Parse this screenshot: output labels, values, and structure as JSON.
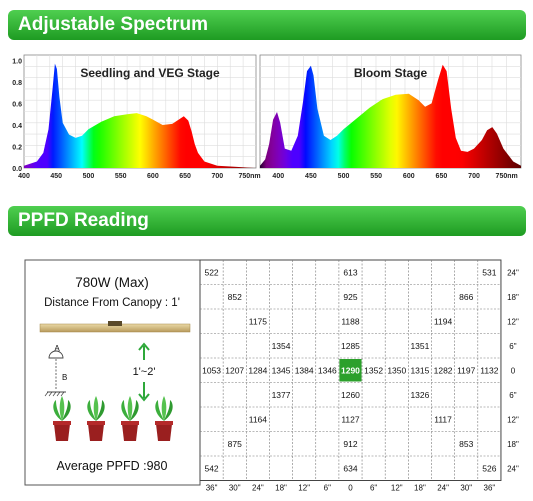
{
  "sections": {
    "spectrum_title": "Adjustable Spectrum",
    "ppfd_title": "PPFD Reading"
  },
  "colors": {
    "banner": "#2ea83a",
    "highlight": "#2ca02c",
    "fixture": "#c9b37a"
  },
  "chart_data": [
    {
      "type": "area",
      "title": "Seedling and VEG Stage",
      "x_ticks": [
        "400",
        "450",
        "500",
        "550",
        "600",
        "650",
        "700",
        "750nm"
      ],
      "y_ticks": [
        "0.0",
        "0.2",
        "0.4",
        "0.6",
        "0.8",
        "1.0"
      ],
      "xlim": [
        400,
        760
      ],
      "ylim": [
        0,
        1.05
      ],
      "x": [
        400,
        420,
        430,
        438,
        444,
        448,
        451,
        455,
        460,
        470,
        480,
        490,
        500,
        520,
        540,
        560,
        575,
        590,
        600,
        615,
        630,
        640,
        648,
        655,
        660,
        665,
        670,
        680,
        700,
        730,
        760
      ],
      "values": [
        0.02,
        0.06,
        0.14,
        0.36,
        0.72,
        0.97,
        0.92,
        0.66,
        0.42,
        0.31,
        0.28,
        0.3,
        0.36,
        0.43,
        0.48,
        0.5,
        0.51,
        0.48,
        0.45,
        0.4,
        0.41,
        0.45,
        0.48,
        0.44,
        0.34,
        0.22,
        0.14,
        0.06,
        0.02,
        0.01,
        0.0
      ]
    },
    {
      "type": "area",
      "title": "Bloom Stage",
      "x_ticks": [
        "400",
        "450",
        "500",
        "550",
        "600",
        "650",
        "700",
        "750nm"
      ],
      "xlim": [
        372,
        772
      ],
      "ylim": [
        0,
        1.05
      ],
      "x": [
        372,
        380,
        386,
        392,
        398,
        403,
        410,
        420,
        430,
        438,
        444,
        450,
        454,
        460,
        470,
        480,
        490,
        500,
        520,
        540,
        560,
        580,
        600,
        615,
        625,
        635,
        645,
        652,
        658,
        665,
        672,
        680,
        690,
        700,
        712,
        720,
        728,
        735,
        745,
        760,
        772
      ],
      "values": [
        0.02,
        0.08,
        0.22,
        0.45,
        0.52,
        0.42,
        0.18,
        0.16,
        0.3,
        0.62,
        0.9,
        0.95,
        0.86,
        0.55,
        0.3,
        0.26,
        0.3,
        0.36,
        0.46,
        0.56,
        0.64,
        0.68,
        0.69,
        0.63,
        0.57,
        0.6,
        0.82,
        0.96,
        0.9,
        0.55,
        0.28,
        0.16,
        0.15,
        0.18,
        0.26,
        0.35,
        0.38,
        0.32,
        0.18,
        0.06,
        0.02
      ]
    },
    {
      "type": "table",
      "wattage": "780W (Max)",
      "distance": "Distance From Canopy : 1'",
      "label_a": "A",
      "label_b": "B",
      "range": "1'~2'",
      "average": "Average PPFD :980",
      "col_labels": [
        "36\"",
        "30\"",
        "24\"",
        "18\"",
        "12\"",
        "6\"",
        "0",
        "6\"",
        "12\"",
        "18\"",
        "24\"",
        "30\"",
        "36\""
      ],
      "row_labels": [
        "24\"",
        "18\"",
        "12\"",
        "6\"",
        "0",
        "6\"",
        "12\"",
        "18\"",
        "24\""
      ],
      "center_value": "1290",
      "rows": [
        [
          "522",
          "",
          "",
          "",
          "",
          "",
          "613",
          "",
          "",
          "",
          "",
          "",
          "531"
        ],
        [
          "",
          "852",
          "",
          "",
          "",
          "",
          "925",
          "",
          "",
          "",
          "",
          "866",
          ""
        ],
        [
          "",
          "",
          "1175",
          "",
          "",
          "",
          "1188",
          "",
          "",
          "",
          "1194",
          "",
          ""
        ],
        [
          "",
          "",
          "",
          "1354",
          "",
          "",
          "1285",
          "",
          "",
          "1351",
          "",
          "",
          ""
        ],
        [
          "1053",
          "1207",
          "1284",
          "1345",
          "1384",
          "1346",
          "1290",
          "1352",
          "1350",
          "1315",
          "1282",
          "1197",
          "1132"
        ],
        [
          "",
          "",
          "",
          "1377",
          "",
          "",
          "1260",
          "",
          "",
          "1326",
          "",
          "",
          ""
        ],
        [
          "",
          "",
          "1164",
          "",
          "",
          "",
          "1127",
          "",
          "",
          "",
          "1117",
          "",
          ""
        ],
        [
          "",
          "875",
          "",
          "",
          "",
          "",
          "912",
          "",
          "",
          "",
          "",
          "853",
          ""
        ],
        [
          "542",
          "",
          "",
          "",
          "",
          "",
          "634",
          "",
          "",
          "",
          "",
          "",
          "526"
        ]
      ]
    }
  ]
}
